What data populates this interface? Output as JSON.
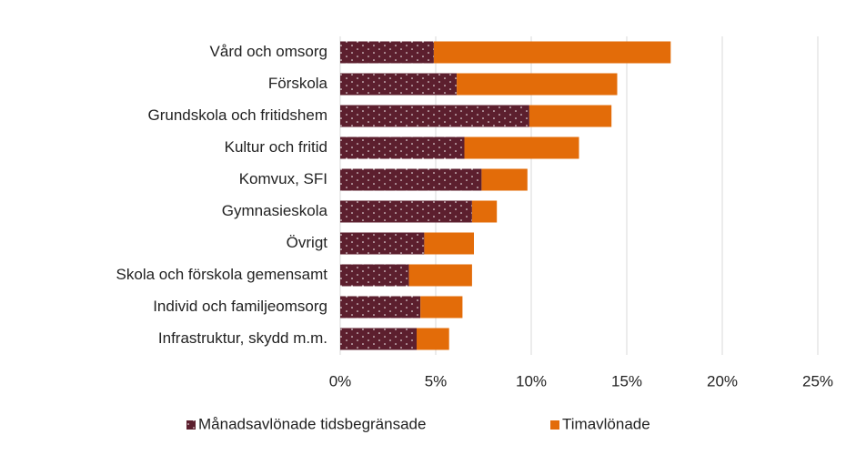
{
  "chart_data": {
    "type": "stacked_barh",
    "categories": [
      "Vård och omsorg",
      "Förskola",
      "Grundskola och fritidshem",
      "Kultur och fritid",
      "Komvux, SFI",
      "Gymnasieskola",
      "Övrigt",
      "Skola och förskola gemensamt",
      "Individ och familjeomsorg",
      "Infrastruktur, skydd m.m."
    ],
    "series": [
      {
        "name": "Månadsavlönade tidsbegränsade",
        "color": "#5c1f2e",
        "pattern": "dots",
        "values": [
          4.9,
          6.1,
          9.9,
          6.5,
          7.4,
          6.9,
          4.4,
          3.6,
          4.2,
          4.0
        ]
      },
      {
        "name": "Timavlönade",
        "color": "#e36c09",
        "values": [
          12.4,
          8.4,
          4.3,
          6.0,
          2.4,
          1.3,
          2.6,
          3.3,
          2.2,
          1.7
        ]
      }
    ],
    "xlim": [
      0,
      25
    ],
    "xticks": [
      {
        "value": 0,
        "label": "0%"
      },
      {
        "value": 5,
        "label": "5%"
      },
      {
        "value": 10,
        "label": "10%"
      },
      {
        "value": 15,
        "label": "15%"
      },
      {
        "value": 20,
        "label": "20%"
      },
      {
        "value": 25,
        "label": "25%"
      }
    ],
    "grid": true,
    "legend": "bottom"
  }
}
